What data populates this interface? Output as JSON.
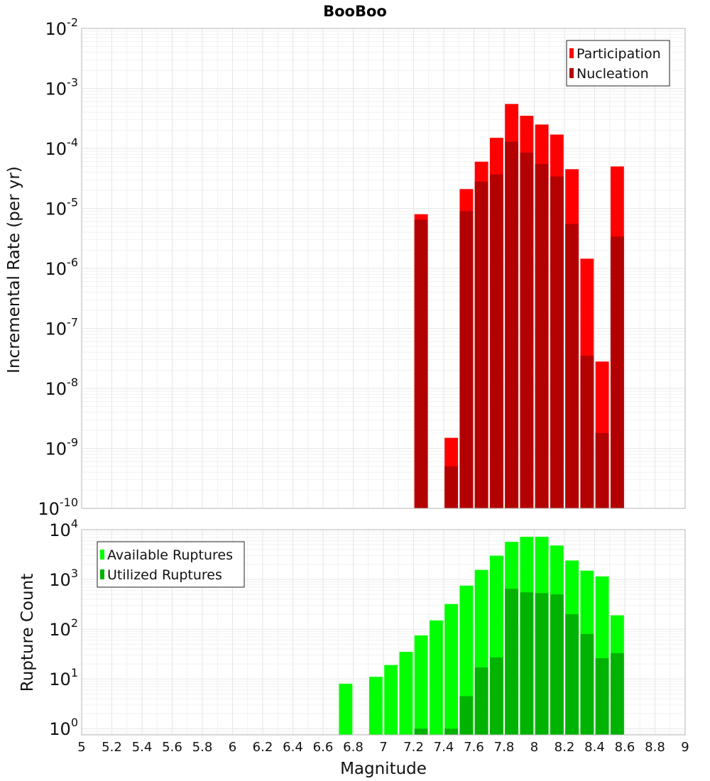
{
  "chart_data": [
    {
      "type": "bar",
      "title": "BooBoo",
      "xlabel": "Magnitude",
      "ylabel": "Incremental Rate (per yr)",
      "yscale": "log",
      "ylim": [
        1e-10,
        0.01
      ],
      "xlim": [
        5,
        9
      ],
      "bin_width": 0.1,
      "y_tick_labels": [
        {
          "base": "10",
          "exp": "-10"
        },
        {
          "base": "10",
          "exp": "-9"
        },
        {
          "base": "10",
          "exp": "-8"
        },
        {
          "base": "10",
          "exp": "-7"
        },
        {
          "base": "10",
          "exp": "-6"
        },
        {
          "base": "10",
          "exp": "-5"
        },
        {
          "base": "10",
          "exp": "-4"
        },
        {
          "base": "10",
          "exp": "-3"
        },
        {
          "base": "10",
          "exp": "-2"
        }
      ],
      "legend": {
        "position": "top-right",
        "entries": [
          "Participation",
          "Nucleation"
        ]
      },
      "x": [
        7.25,
        7.45,
        7.55,
        7.65,
        7.75,
        7.85,
        7.95,
        8.05,
        8.15,
        8.25,
        8.35,
        8.45,
        8.55
      ],
      "series": [
        {
          "name": "Participation",
          "color": "#ff0000",
          "values": [
            8e-06,
            1.5e-09,
            2.1e-05,
            6e-05,
            0.00015,
            0.00055,
            0.00035,
            0.00025,
            0.00017,
            4.5e-05,
            1.45e-06,
            2.8e-08,
            5e-05
          ]
        },
        {
          "name": "Nucleation",
          "color": "#b30000",
          "values": [
            6.5e-06,
            5e-10,
            9e-06,
            2.8e-05,
            3.7e-05,
            0.00013,
            8.5e-05,
            5.5e-05,
            3.4e-05,
            5.5e-06,
            3.5e-08,
            1.8e-09,
            3.4e-06
          ]
        }
      ]
    },
    {
      "type": "bar",
      "xlabel": "Magnitude",
      "ylabel": "Rupture Count",
      "yscale": "log",
      "ylim": [
        0.75,
        10000
      ],
      "xlim": [
        5,
        9
      ],
      "bin_width": 0.1,
      "y_tick_labels": [
        {
          "base": "10",
          "exp": "0"
        },
        {
          "base": "10",
          "exp": "1"
        },
        {
          "base": "10",
          "exp": "2"
        },
        {
          "base": "10",
          "exp": "3"
        },
        {
          "base": "10",
          "exp": "4"
        }
      ],
      "x_tick_labels": [
        "5",
        "5.2",
        "5.4",
        "5.6",
        "5.8",
        "6",
        "6.2",
        "6.4",
        "6.6",
        "6.8",
        "7",
        "7.2",
        "7.4",
        "7.6",
        "7.8",
        "8",
        "8.2",
        "8.4",
        "8.6",
        "8.8",
        "9"
      ],
      "legend": {
        "position": "top-left",
        "entries": [
          "Available Ruptures",
          "Utilized Ruptures"
        ]
      },
      "x": [
        6.75,
        6.95,
        7.05,
        7.15,
        7.25,
        7.35,
        7.45,
        7.55,
        7.65,
        7.75,
        7.85,
        7.95,
        8.05,
        8.15,
        8.25,
        8.35,
        8.45,
        8.55
      ],
      "series": [
        {
          "name": "Available Ruptures",
          "color": "#00ff00",
          "values": [
            8,
            11,
            19,
            35,
            75,
            150,
            320,
            750,
            1550,
            3000,
            5700,
            7200,
            7200,
            4800,
            2400,
            1500,
            1150,
            190
          ]
        },
        {
          "name": "Utilized Ruptures",
          "color": "#00b300",
          "values": [
            0,
            0,
            0,
            0,
            1,
            0,
            1,
            4.5,
            17,
            27,
            650,
            550,
            530,
            500,
            200,
            80,
            26,
            33
          ]
        }
      ]
    }
  ]
}
